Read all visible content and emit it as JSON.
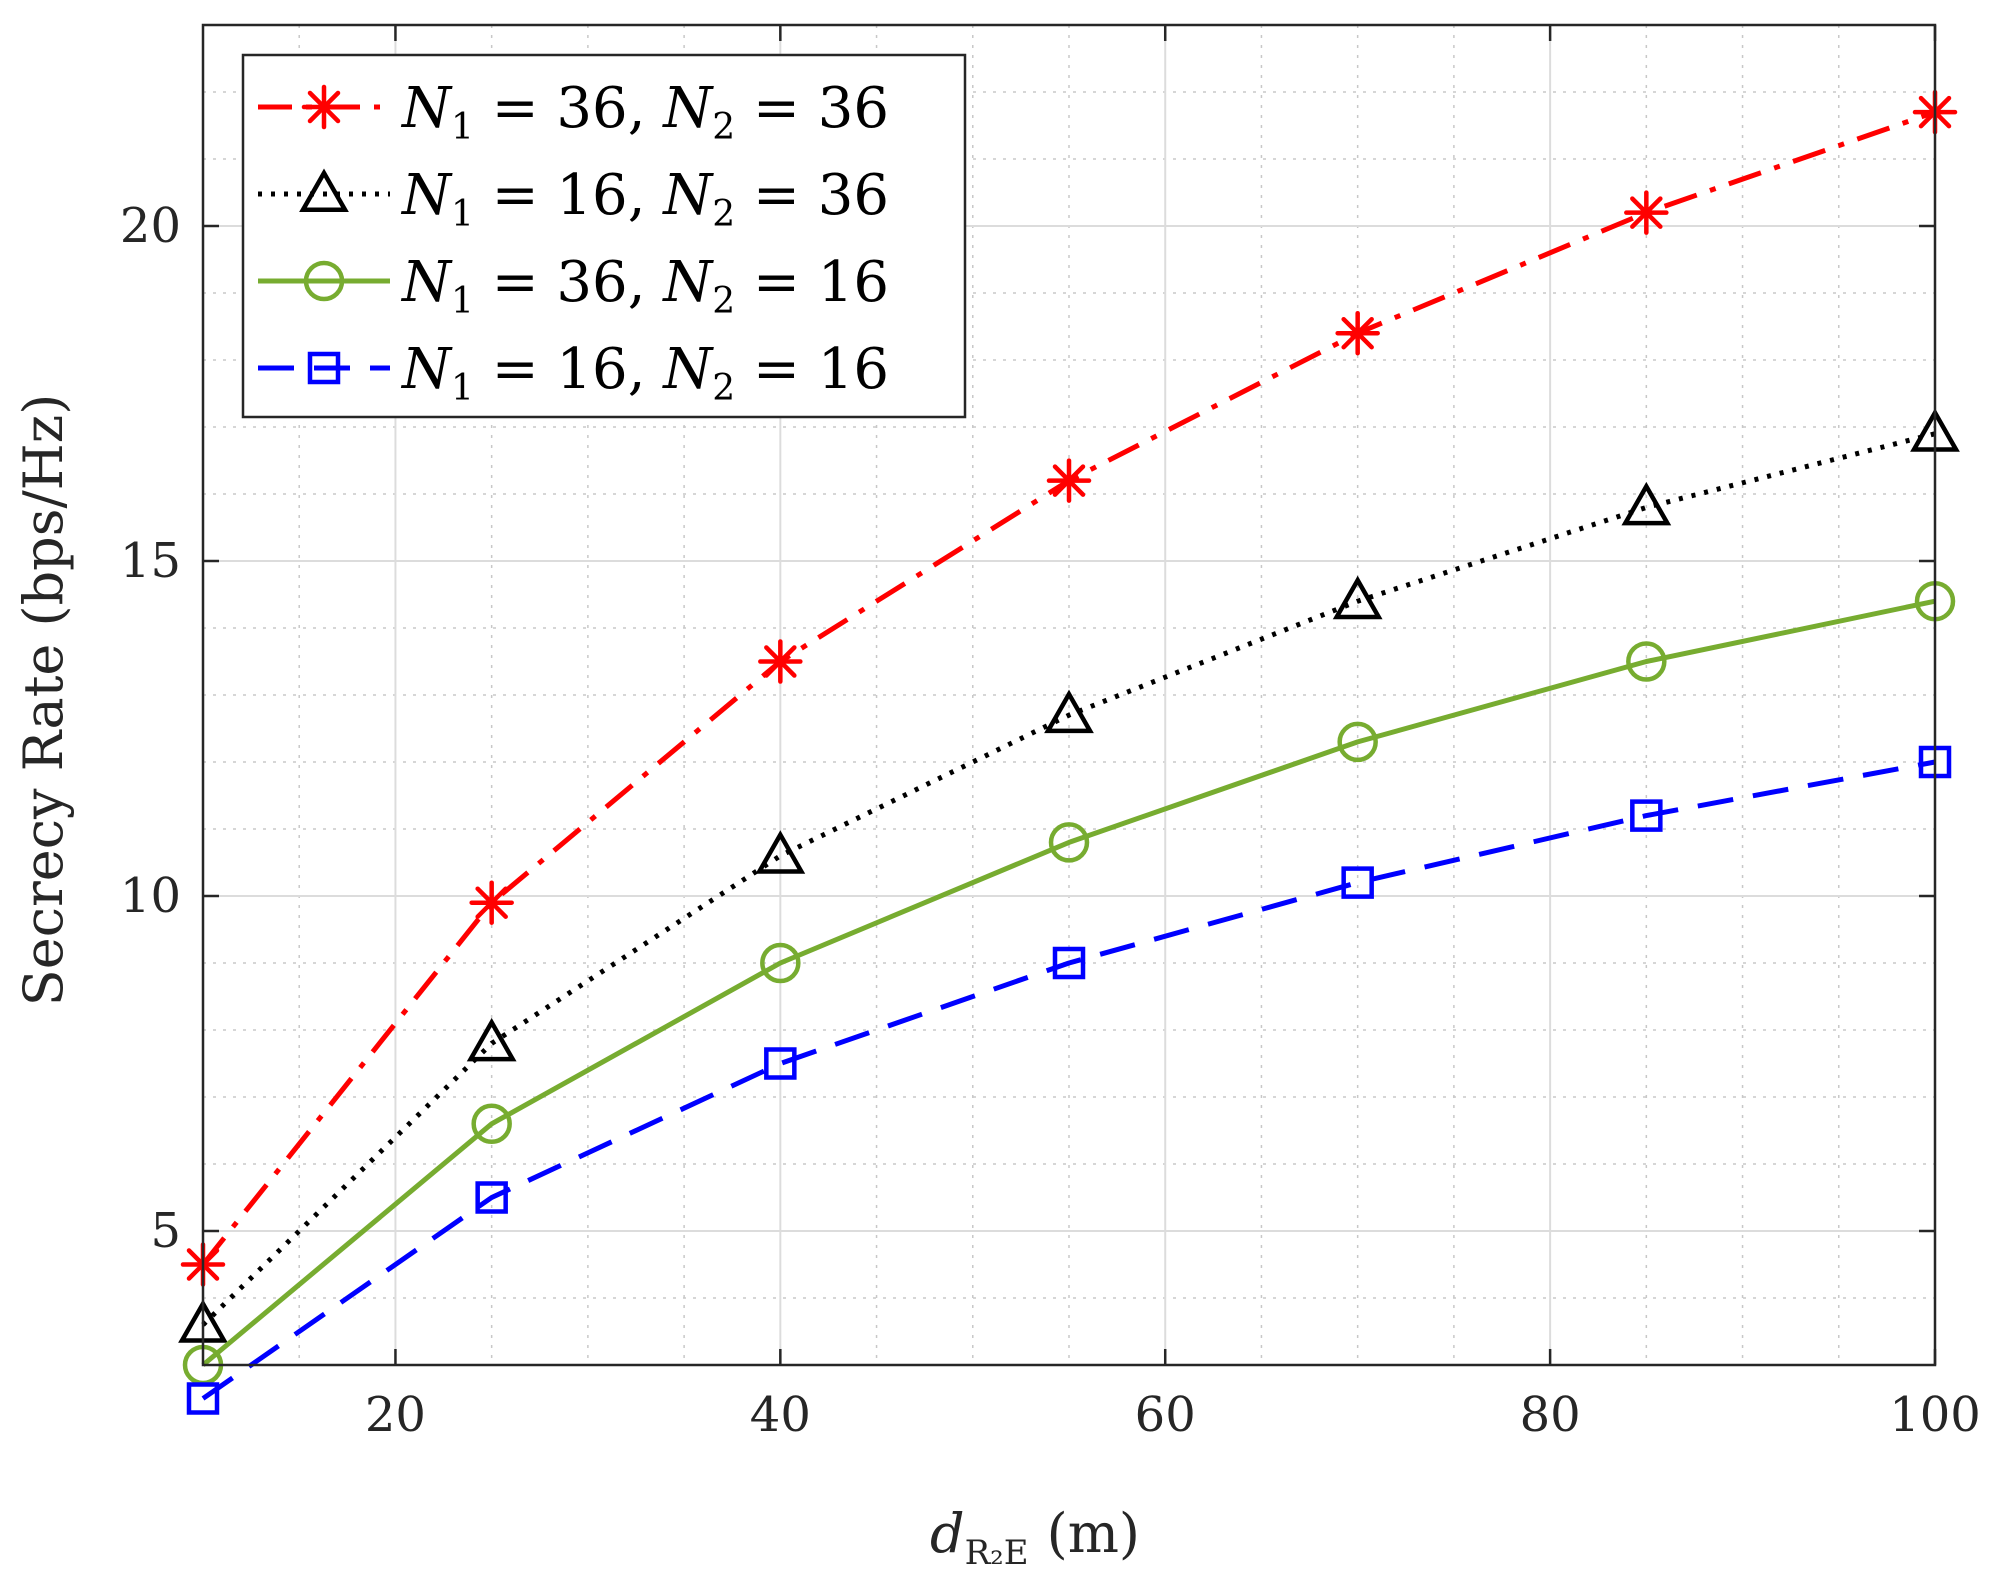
{
  "chart_data": {
    "type": "line",
    "title": "",
    "xlabel": "d",
    "xlabel_subscript": "R₂E",
    "xlabel_unit": "(m)",
    "ylabel": "Secrecy Rate (bps/Hz)",
    "xlim": [
      10,
      100
    ],
    "ylim": [
      3,
      23
    ],
    "xticks": [
      20,
      40,
      60,
      80,
      100
    ],
    "yticks": [
      5,
      10,
      15,
      20
    ],
    "xtick_labels": [
      "20",
      "40",
      "60",
      "80",
      "100"
    ],
    "ytick_labels": [
      "5",
      "10",
      "15",
      "20"
    ],
    "grid": true,
    "minor_grid": true,
    "legend_position": "top-left",
    "x": [
      10,
      25,
      40,
      55,
      70,
      85,
      100
    ],
    "series": [
      {
        "name": "N1 = 36, N2 = 36",
        "legend": {
          "n1": "36",
          "n2": "36"
        },
        "values": [
          4.5,
          9.9,
          13.5,
          16.2,
          18.4,
          20.2,
          21.7
        ],
        "color": "#ff0000",
        "line_style": "dashdot",
        "marker": "asterisk"
      },
      {
        "name": "N1 = 16, N2 = 36",
        "legend": {
          "n1": "16",
          "n2": "36"
        },
        "values": [
          3.6,
          7.8,
          10.6,
          12.7,
          14.4,
          15.8,
          16.9
        ],
        "color": "#000000",
        "line_style": "dotted",
        "marker": "triangle"
      },
      {
        "name": "N1 = 36, N2 = 16",
        "legend": {
          "n1": "36",
          "n2": "16"
        },
        "values": [
          3.0,
          6.6,
          9.0,
          10.8,
          12.3,
          13.5,
          14.4
        ],
        "color": "#77ac30",
        "line_style": "solid",
        "marker": "circle"
      },
      {
        "name": "N1 = 16, N2 = 16",
        "legend": {
          "n1": "16",
          "n2": "16"
        },
        "values": [
          2.5,
          5.5,
          7.5,
          9.0,
          10.2,
          11.2,
          12.0
        ],
        "color": "#0000ff",
        "line_style": "dashed",
        "marker": "square"
      }
    ]
  }
}
